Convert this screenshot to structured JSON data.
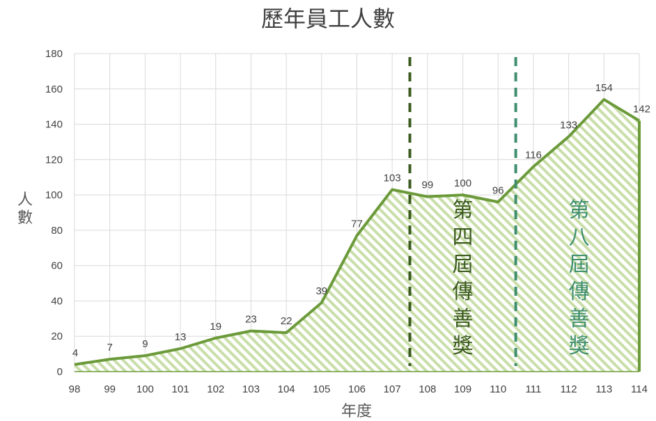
{
  "chart_data": {
    "type": "area",
    "title": "歷年員工人數",
    "xlabel": "年度",
    "ylabel": "人數",
    "categories": [
      "98",
      "99",
      "100",
      "101",
      "102",
      "103",
      "104",
      "105",
      "106",
      "107",
      "108",
      "109",
      "110",
      "111",
      "112",
      "113",
      "114"
    ],
    "values": [
      4,
      7,
      9,
      13,
      19,
      23,
      22,
      39,
      77,
      103,
      99,
      100,
      96,
      116,
      133,
      154,
      142
    ],
    "data_labels": [
      "4",
      "7",
      "9",
      "13",
      "19",
      "23",
      "22",
      "39",
      "77",
      "103",
      "99",
      "100",
      "96",
      "116",
      "133",
      "154",
      "142"
    ],
    "ylim": [
      0,
      180
    ],
    "yticks": [
      0,
      20,
      40,
      60,
      80,
      100,
      120,
      140,
      160,
      180
    ],
    "ytick_labels": [
      "0",
      "20",
      "40",
      "60",
      "80",
      "100",
      "120",
      "140",
      "160",
      "180"
    ],
    "grid": true,
    "annotations": [
      {
        "text": "第四屆傳善獎",
        "x_between": [
          "107",
          "108"
        ],
        "color": "#3a5a1e",
        "line_style": "dashed"
      },
      {
        "text": "第八屆傳善獎",
        "x_between": [
          "110",
          "111"
        ],
        "color": "#3f8f6f",
        "line_style": "dashed"
      }
    ],
    "colors": {
      "line": "#6b9a3a",
      "fill_stripe": "#c9dea9",
      "grid": "#d9d9d9",
      "text": "#404040"
    }
  }
}
